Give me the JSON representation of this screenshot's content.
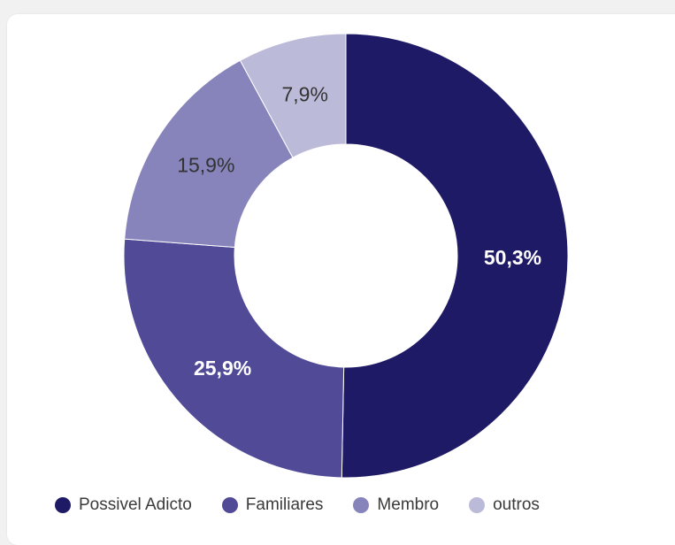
{
  "chart_data": {
    "type": "pie",
    "donut": true,
    "categories": [
      "Possivel Adicto",
      "Familiares",
      "Membro",
      "outros"
    ],
    "values": [
      50.3,
      25.9,
      15.9,
      7.9
    ],
    "labels": [
      "50,3%",
      "25,9%",
      "15,9%",
      "7,9%"
    ],
    "colors": [
      "#1f1a66",
      "#514a97",
      "#8783bb",
      "#bcbad9"
    ],
    "label_colors": [
      "#ffffff",
      "#ffffff",
      "#333333",
      "#333333"
    ],
    "title": "",
    "legend_position": "bottom"
  }
}
